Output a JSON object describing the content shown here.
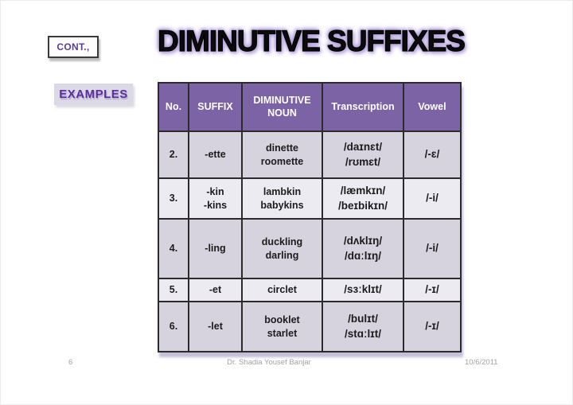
{
  "slide": {
    "cont_label": "CONT.,",
    "title": "DIMINUTIVE SUFFIXES",
    "examples_label": "EXAMPLES"
  },
  "table": {
    "headers": [
      "No.",
      "SUFFIX",
      "DIMINUTIVE NOUN",
      "Transcription",
      "Vowel"
    ],
    "rows": [
      {
        "no": "2.",
        "suffix": [
          "-ette"
        ],
        "nouns": [
          "dinette",
          "roomette"
        ],
        "transcriptions": [
          "/daɪnɛt/",
          "/rʊmɛt/"
        ],
        "vowel": "/-ɛ/"
      },
      {
        "no": "3.",
        "suffix": [
          "-kin",
          "-kins"
        ],
        "nouns": [
          "lambkin",
          "babykins"
        ],
        "transcriptions": [
          "/læmkɪn/",
          "/beɪbikɪn/"
        ],
        "vowel": "/-i/"
      },
      {
        "no": "4.",
        "suffix": [
          "-ling"
        ],
        "nouns": [
          "duckling",
          "darling"
        ],
        "transcriptions": [
          "/dʌklɪŋ/",
          "/dɑːlɪŋ/"
        ],
        "vowel": "/-i/"
      },
      {
        "no": "5.",
        "suffix": [
          "-et"
        ],
        "nouns": [
          "circlet"
        ],
        "transcriptions": [
          "/sɜːklɪt/"
        ],
        "vowel": "/-ɪ/"
      },
      {
        "no": "6.",
        "suffix": [
          "-let"
        ],
        "nouns": [
          "booklet",
          "starlet"
        ],
        "transcriptions": [
          "/bulɪt/",
          "/stɑːlɪt/"
        ],
        "vowel": "/-ɪ/"
      }
    ],
    "colors": {
      "header_bg": "#7b63a5",
      "header_text": "#ffffff",
      "row_dark": "#d6d3de",
      "row_light": "#edebf2",
      "border": "#2b2b2b",
      "title_glow": "#b2a0da",
      "accent_purple": "#5b2da0"
    }
  },
  "footer": {
    "page": "6",
    "center": "Dr. Shadia Yousef Banjar",
    "date": "10/6/2011"
  }
}
